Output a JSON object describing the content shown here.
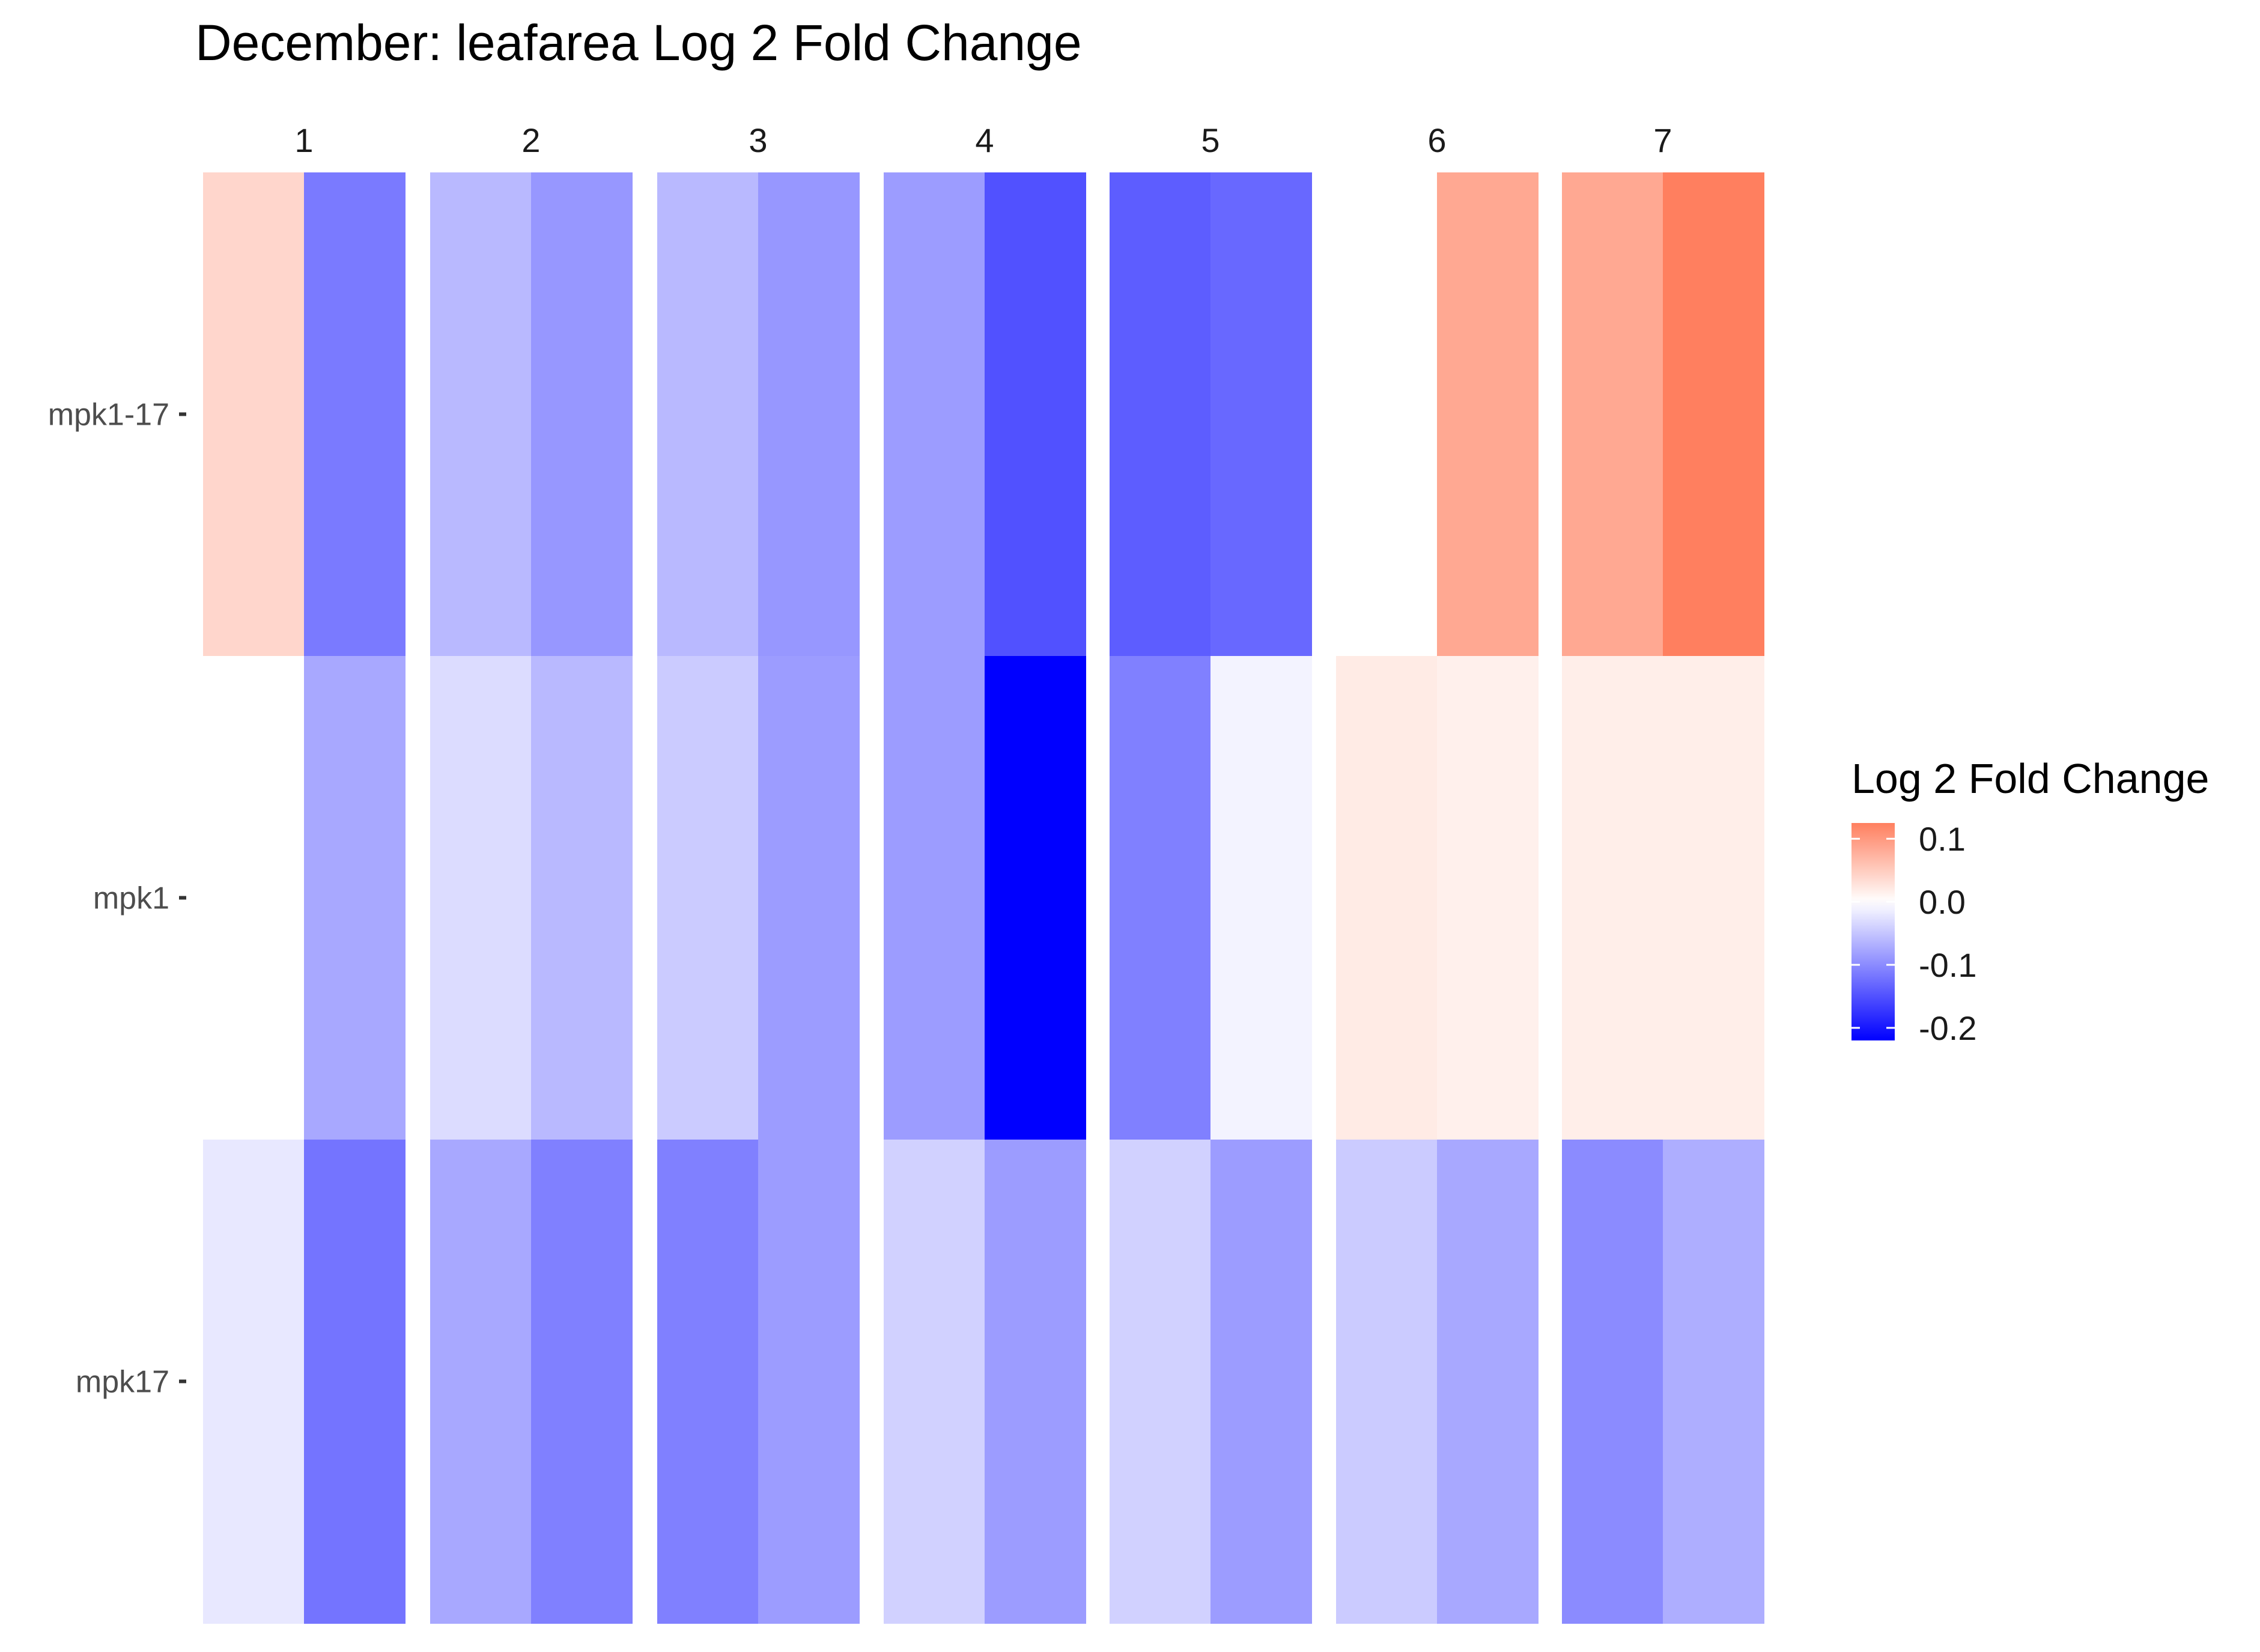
{
  "chart_data": {
    "type": "heatmap",
    "title": "December: leafarea Log 2 Fold Change",
    "facets": [
      "1",
      "2",
      "3",
      "4",
      "5",
      "6",
      "7"
    ],
    "rows": [
      "mpk1-17",
      "mpk1",
      "mpk17"
    ],
    "columns_per_facet": 2,
    "values": {
      "mpk1-17": [
        [
          0.04,
          -0.115
        ],
        [
          -0.06,
          -0.09
        ],
        [
          -0.06,
          -0.09
        ],
        [
          -0.085,
          -0.15
        ],
        [
          -0.14,
          -0.13
        ],
        [
          0.0,
          0.085
        ],
        [
          0.085,
          0.125
        ]
      ],
      "mpk1": [
        [
          0.0,
          -0.075
        ],
        [
          -0.03,
          -0.06
        ],
        [
          -0.045,
          -0.085
        ],
        [
          -0.085,
          -0.22
        ],
        [
          -0.11,
          -0.01
        ],
        [
          0.02,
          0.015
        ],
        [
          0.017,
          0.017
        ]
      ],
      "mpk17": [
        [
          -0.02,
          -0.12
        ],
        [
          -0.075,
          -0.11
        ],
        [
          -0.11,
          -0.085
        ],
        [
          -0.04,
          -0.085
        ],
        [
          -0.04,
          -0.085
        ],
        [
          -0.045,
          -0.075
        ],
        [
          -0.1,
          -0.07
        ]
      ]
    },
    "legend": {
      "title": "Log 2 Fold Change",
      "ticks": [
        0.1,
        0.0,
        -0.1,
        -0.2
      ],
      "tick_labels": [
        "0.1",
        "0.0",
        "-0.1",
        "-0.2"
      ],
      "placement": "right",
      "low_color": "#0000ff",
      "mid_color": "#ffffff",
      "high_color": "#ff7f5f",
      "limits": [
        -0.22,
        0.125
      ]
    },
    "grid": false
  }
}
